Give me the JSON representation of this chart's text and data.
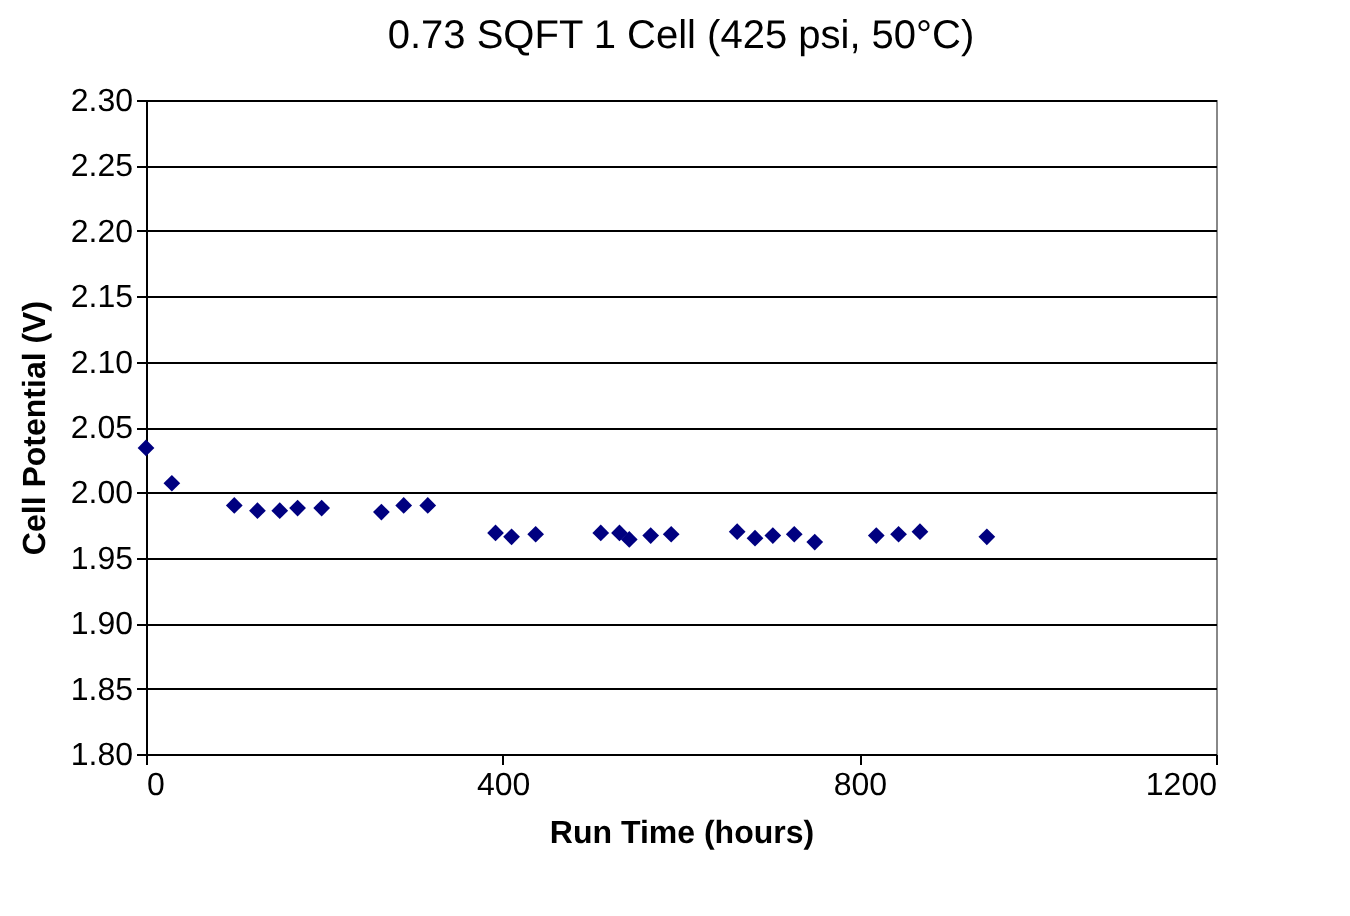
{
  "chart_data": {
    "type": "scatter",
    "title": "0.73 SQFT 1 Cell (425 psi, 50°C)",
    "xlabel": "Run Time (hours)",
    "ylabel": "Cell Potential (V)",
    "x": [
      0,
      29,
      99,
      125,
      150,
      170,
      197,
      264,
      289,
      316,
      392,
      410,
      437,
      510,
      531,
      542,
      566,
      589,
      663,
      683,
      703,
      727,
      750,
      819,
      844,
      868,
      943
    ],
    "series": [
      {
        "color": "#000080",
        "values": [
          2.034,
          2.007,
          1.99,
          1.986,
          1.986,
          1.988,
          1.988,
          1.985,
          1.99,
          1.99,
          1.969,
          1.966,
          1.968,
          1.969,
          1.969,
          1.964,
          1.967,
          1.968,
          1.97,
          1.965,
          1.967,
          1.968,
          1.962,
          1.967,
          1.968,
          1.97,
          1.966
        ]
      }
    ],
    "xlim": [
      0,
      1200
    ],
    "xticks": [
      0,
      400,
      800,
      1200
    ],
    "ylim": [
      1.8,
      2.3
    ],
    "yticks": [
      {
        "value": 1.8,
        "label": "1.80"
      },
      {
        "value": 1.85,
        "label": "1.85"
      },
      {
        "value": 1.9,
        "label": "1.90"
      },
      {
        "value": 1.95,
        "label": "1.95"
      },
      {
        "value": 2.0,
        "label": "2.00"
      },
      {
        "value": 2.05,
        "label": "2.05"
      },
      {
        "value": 2.1,
        "label": "2.10"
      },
      {
        "value": 2.15,
        "label": "2.15"
      },
      {
        "value": 2.2,
        "label": "2.20"
      },
      {
        "value": 2.25,
        "label": "2.25"
      },
      {
        "value": 2.3,
        "label": "2.30"
      }
    ],
    "grid": "y",
    "marker": "diamond"
  }
}
